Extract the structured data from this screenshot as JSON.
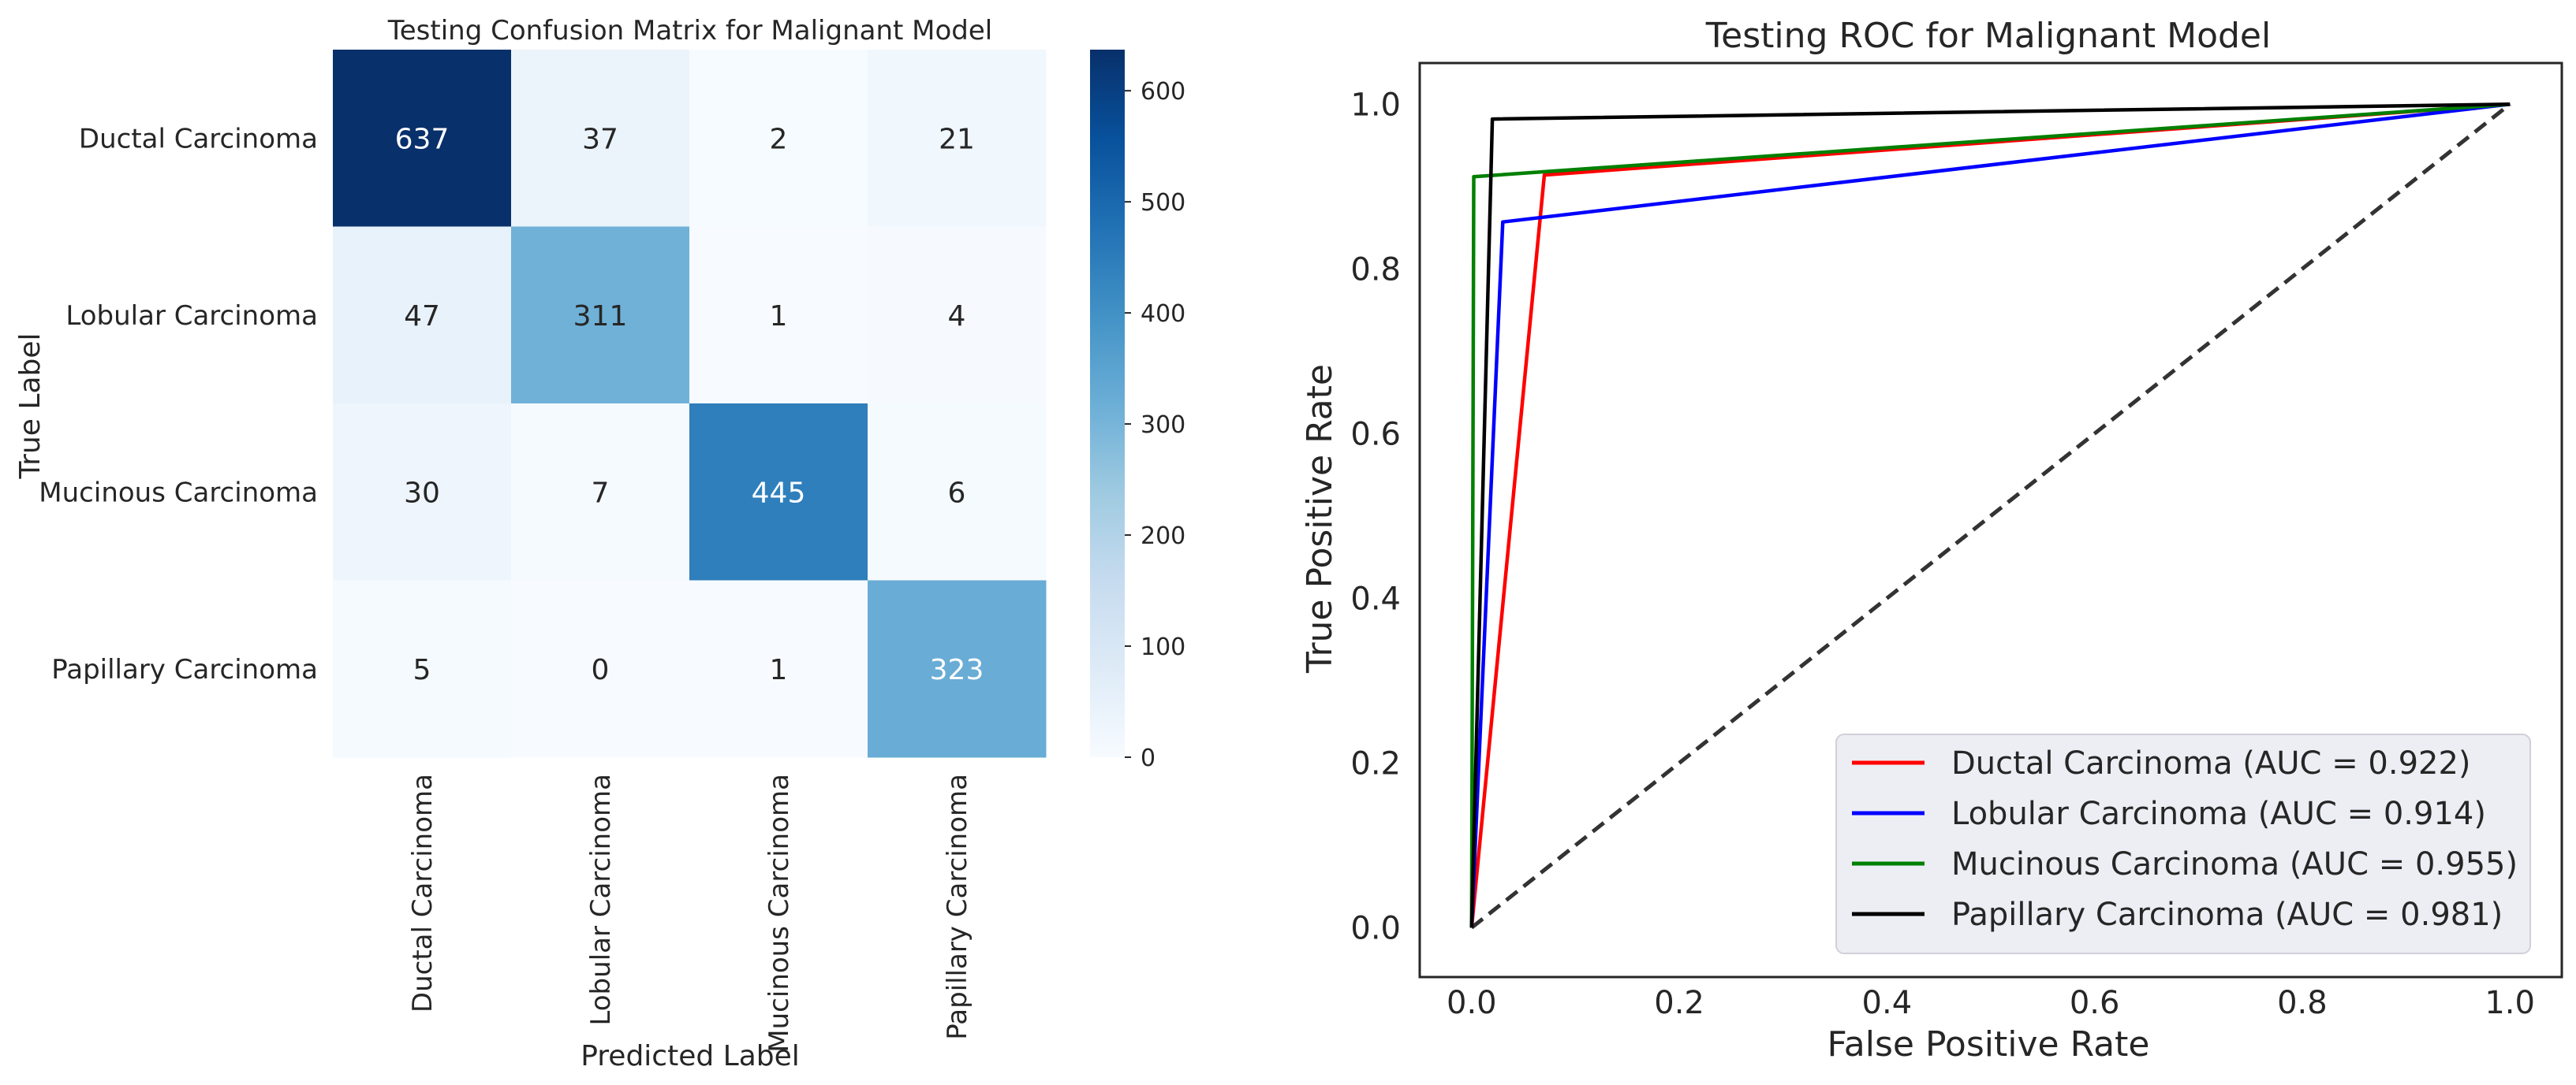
{
  "chart_data": [
    {
      "type": "heatmap",
      "title": "Testing Confusion Matrix for Malignant Model",
      "xlabel": "Predicted Label",
      "ylabel": "True Label",
      "row_labels": [
        "Ductal Carcinoma",
        "Lobular Carcinoma",
        "Mucinous Carcinoma",
        "Papillary Carcinoma"
      ],
      "col_labels": [
        "Ductal Carcinoma",
        "Lobular Carcinoma",
        "Mucinous Carcinoma",
        "Papillary Carcinoma"
      ],
      "values": [
        [
          637,
          37,
          2,
          21
        ],
        [
          47,
          311,
          1,
          4
        ],
        [
          30,
          7,
          445,
          6
        ],
        [
          5,
          0,
          1,
          323
        ]
      ],
      "colormap": "Blues",
      "colorbar": {
        "min": 0,
        "max": 637,
        "ticks": [
          0,
          100,
          200,
          300,
          400,
          500,
          600
        ]
      }
    },
    {
      "type": "line",
      "title": "Testing ROC for Malignant Model",
      "xlabel": "False Positive Rate",
      "ylabel": "True Positive Rate",
      "xlim": [
        -0.05,
        1.05
      ],
      "ylim": [
        -0.06,
        1.05
      ],
      "xticks": [
        0.0,
        0.2,
        0.4,
        0.6,
        0.8,
        1.0
      ],
      "yticks": [
        0.0,
        0.2,
        0.4,
        0.6,
        0.8,
        1.0
      ],
      "tick_labels": [
        "0.0",
        "0.2",
        "0.4",
        "0.6",
        "0.8",
        "1.0"
      ],
      "legend_location": "lower-right",
      "series": [
        {
          "name": "Ductal Carcinoma",
          "label": "Ductal Carcinoma (AUC = 0.922)",
          "color": "#ff0000",
          "x": [
            0,
            0.07,
            1
          ],
          "y": [
            0,
            0.914,
            1
          ]
        },
        {
          "name": "Lobular Carcinoma",
          "label": "Lobular Carcinoma (AUC = 0.914)",
          "color": "#0000ff",
          "x": [
            0,
            0.03,
            1
          ],
          "y": [
            0,
            0.857,
            1
          ]
        },
        {
          "name": "Mucinous Carcinoma",
          "label": "Mucinous Carcinoma (AUC = 0.955)",
          "color": "#008000",
          "x": [
            0,
            0.002,
            1
          ],
          "y": [
            0,
            0.912,
            1
          ]
        },
        {
          "name": "Papillary Carcinoma",
          "label": "Papillary Carcinoma (AUC = 0.981)",
          "color": "#000000",
          "x": [
            0,
            0.02,
            1
          ],
          "y": [
            0,
            0.982,
            1
          ]
        }
      ],
      "reference_line": {
        "x": [
          0,
          1
        ],
        "y": [
          0,
          1
        ],
        "color": "#333333",
        "style": "dashed"
      }
    }
  ]
}
